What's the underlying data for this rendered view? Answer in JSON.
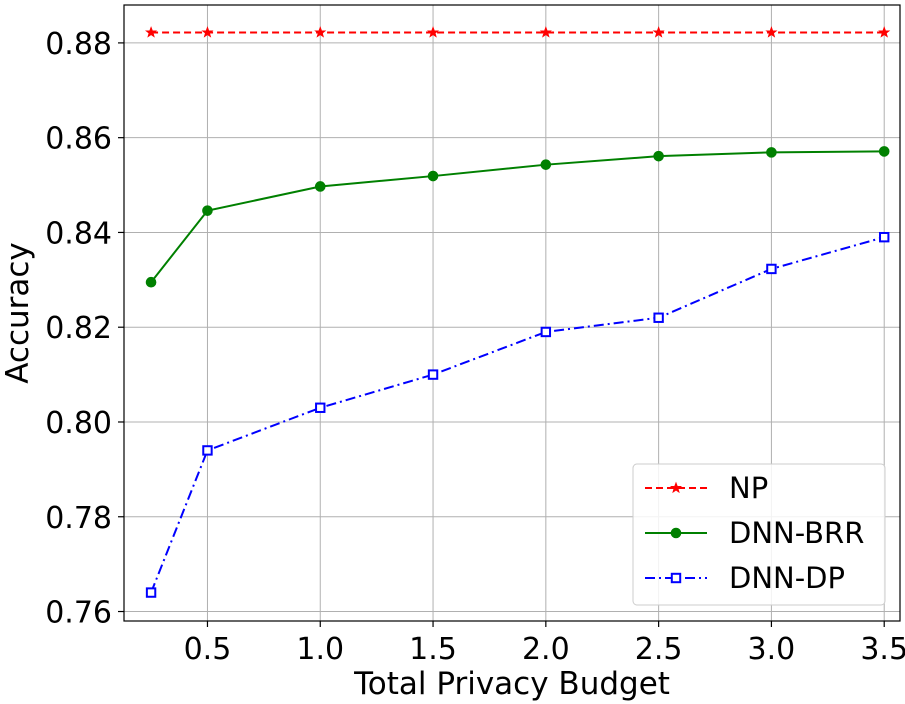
{
  "chart_data": {
    "type": "line",
    "title": "",
    "xlabel": "Total Privacy Budget",
    "ylabel": "Accuracy",
    "xlim": [
      0.13,
      3.57
    ],
    "ylim": [
      0.758,
      0.888
    ],
    "xticks": [
      0.5,
      1.0,
      1.5,
      2.0,
      2.5,
      3.0,
      3.5
    ],
    "xtick_labels": [
      "0.5",
      "1.0",
      "1.5",
      "2.0",
      "2.5",
      "3.0",
      "3.5"
    ],
    "yticks": [
      0.76,
      0.78,
      0.8,
      0.82,
      0.84,
      0.86,
      0.88
    ],
    "ytick_labels": [
      "0.76",
      "0.78",
      "0.80",
      "0.82",
      "0.84",
      "0.86",
      "0.88"
    ],
    "grid": true,
    "legend_position": "lower-right",
    "series": [
      {
        "name": "NP",
        "color": "#ff0000",
        "line_style": "dashed",
        "marker": "star",
        "x": [
          0.25,
          0.5,
          1.0,
          1.5,
          2.0,
          2.5,
          3.0,
          3.5
        ],
        "y": [
          0.8822,
          0.8822,
          0.8822,
          0.8822,
          0.8822,
          0.8822,
          0.8822,
          0.8822
        ]
      },
      {
        "name": "DNN-BRR",
        "color": "#008000",
        "line_style": "solid",
        "marker": "circle",
        "x": [
          0.25,
          0.5,
          1.0,
          1.5,
          2.0,
          2.5,
          3.0,
          3.5
        ],
        "y": [
          0.8295,
          0.8446,
          0.8497,
          0.8519,
          0.8543,
          0.8561,
          0.8569,
          0.8571
        ]
      },
      {
        "name": "DNN-DP",
        "color": "#0000ff",
        "line_style": "dashdot",
        "marker": "square-open",
        "x": [
          0.25,
          0.5,
          1.0,
          1.5,
          2.0,
          2.5,
          3.0,
          3.5
        ],
        "y": [
          0.764,
          0.794,
          0.803,
          0.81,
          0.819,
          0.822,
          0.8323,
          0.839
        ]
      }
    ]
  }
}
